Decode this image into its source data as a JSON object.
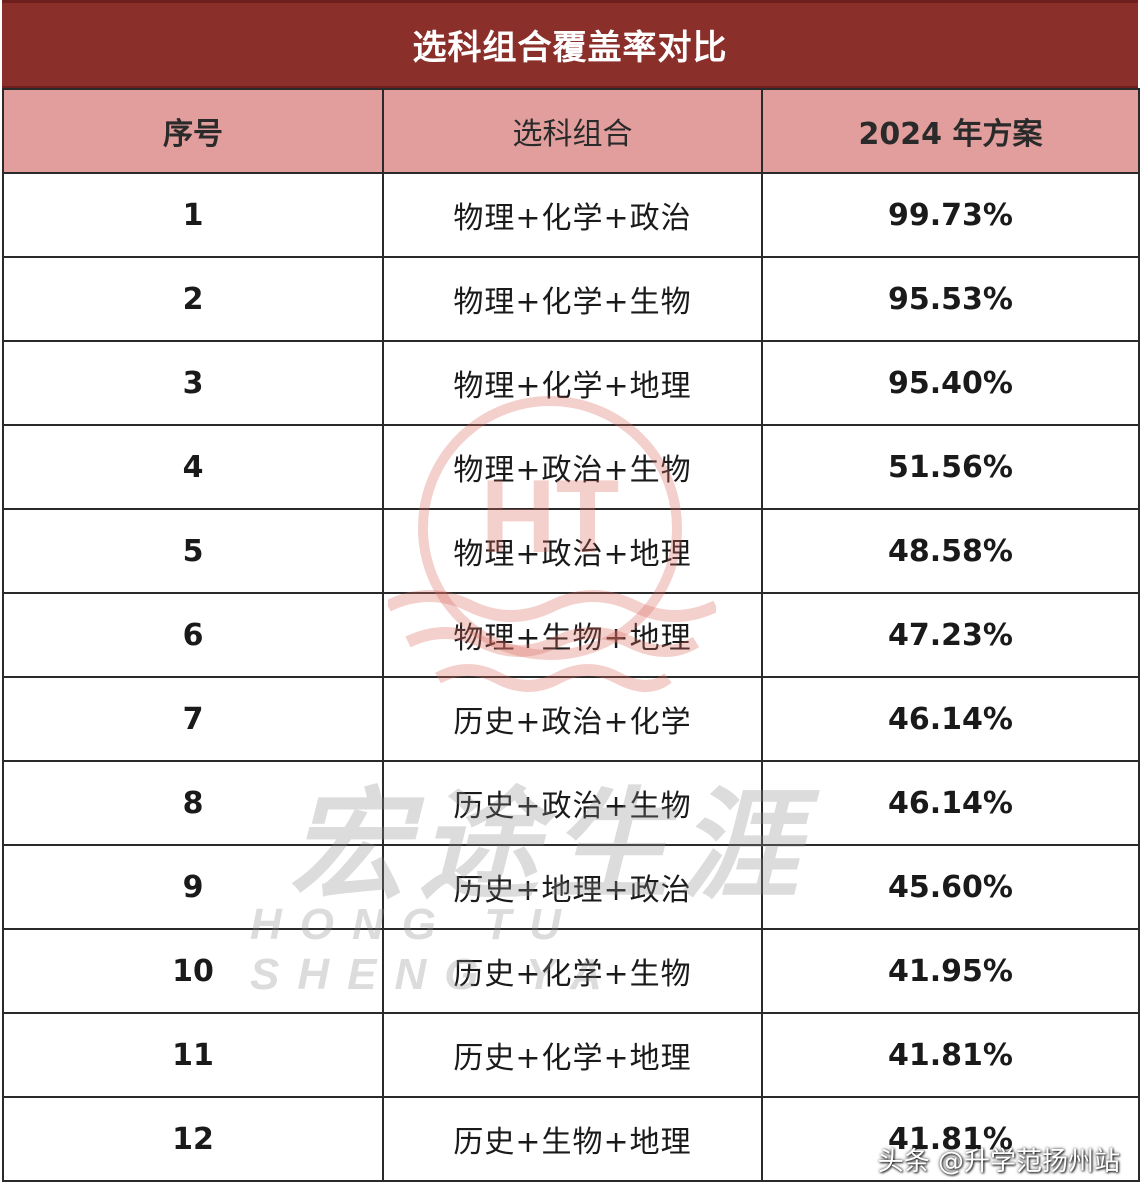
{
  "title": "选科组合覆盖率对比",
  "table": {
    "headers": [
      "序号",
      "选科组合",
      "2024 年方案"
    ],
    "rows": [
      {
        "no": "1",
        "combo": "物理+化学+政治",
        "rate": "99.73%"
      },
      {
        "no": "2",
        "combo": "物理+化学+生物",
        "rate": "95.53%"
      },
      {
        "no": "3",
        "combo": "物理+化学+地理",
        "rate": "95.40%"
      },
      {
        "no": "4",
        "combo": "物理+政治+生物",
        "rate": "51.56%"
      },
      {
        "no": "5",
        "combo": "物理+政治+地理",
        "rate": "48.58%"
      },
      {
        "no": "6",
        "combo": "物理+生物+地理",
        "rate": "47.23%"
      },
      {
        "no": "7",
        "combo": "历史+政治+化学",
        "rate": "46.14%"
      },
      {
        "no": "8",
        "combo": "历史+政治+生物",
        "rate": "46.14%"
      },
      {
        "no": "9",
        "combo": "历史+地理+政治",
        "rate": "45.60%"
      },
      {
        "no": "10",
        "combo": "历史+化学+生物",
        "rate": "41.95%"
      },
      {
        "no": "11",
        "combo": "历史+化学+地理",
        "rate": "41.81%"
      },
      {
        "no": "12",
        "combo": "历史+生物+地理",
        "rate": "41.81%"
      }
    ]
  },
  "watermark": {
    "logo_text": "HT",
    "name": "宏途生涯",
    "pinyin": "HONG TU SHENG YA"
  },
  "credit": "头条 @升学范扬州站",
  "colors": {
    "title_bg": "#8b2f2b",
    "header_bg": "#de9694",
    "border": "#2a2a2a"
  }
}
